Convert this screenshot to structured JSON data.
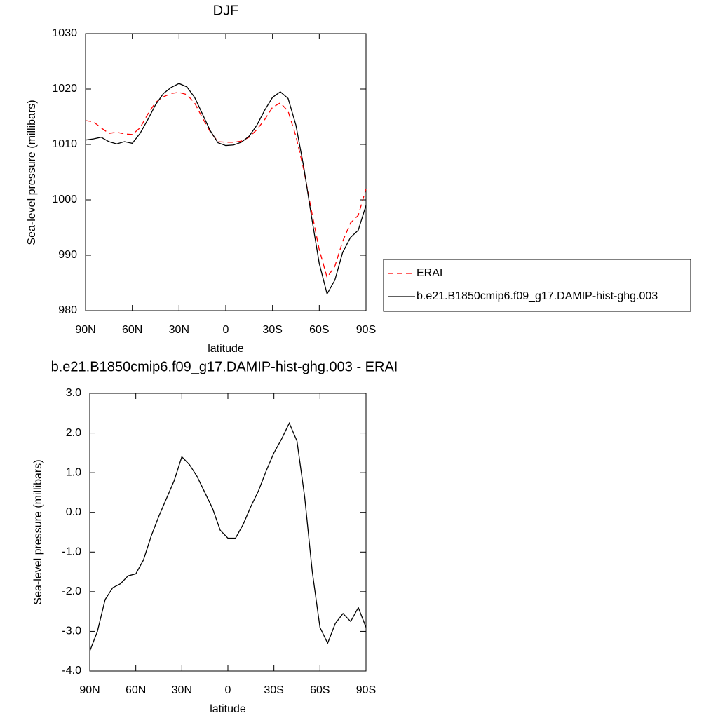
{
  "chart_data": [
    {
      "type": "line",
      "title": "DJF",
      "xlabel": "latitude",
      "ylabel": "Sea-level pressure (millibars)",
      "x": [
        90,
        85,
        80,
        75,
        70,
        65,
        60,
        55,
        50,
        45,
        40,
        35,
        30,
        25,
        20,
        15,
        10,
        5,
        0,
        -5,
        -10,
        -15,
        -20,
        -25,
        -30,
        -35,
        -40,
        -45,
        -50,
        -55,
        -60,
        -65,
        -70,
        -75,
        -80,
        -85,
        -90
      ],
      "series": [
        {
          "name": "ERAI",
          "color": "#ff0000",
          "line_style": "dashed",
          "values": [
            1014.3,
            1014.1,
            1013.0,
            1012.0,
            1012.2,
            1011.9,
            1011.8,
            1013.0,
            1015.5,
            1017.6,
            1018.6,
            1019.2,
            1019.4,
            1019.0,
            1017.5,
            1014.8,
            1012.3,
            1010.5,
            1010.4,
            1010.4,
            1010.6,
            1011.3,
            1012.7,
            1014.5,
            1016.7,
            1017.5,
            1016.0,
            1011.5,
            1005.5,
            998.0,
            991.0,
            986.0,
            988.0,
            992.5,
            995.8,
            997.2,
            1002.0
          ]
        },
        {
          "name": "b.e21.B1850cmip6.f09_g17.DAMIP-hist-ghg.003",
          "color": "#000000",
          "line_style": "solid",
          "values": [
            1010.8,
            1011.0,
            1011.3,
            1010.5,
            1010.1,
            1010.5,
            1010.2,
            1012.0,
            1014.5,
            1017.2,
            1019.2,
            1020.3,
            1021.0,
            1020.4,
            1018.5,
            1015.5,
            1012.5,
            1010.3,
            1009.8,
            1009.9,
            1010.4,
            1011.5,
            1013.5,
            1016.2,
            1018.5,
            1019.5,
            1018.3,
            1013.5,
            1006.0,
            997.0,
            988.5,
            983.0,
            985.5,
            990.5,
            993.2,
            994.5,
            999.0
          ]
        }
      ],
      "xlim": [
        90,
        -90
      ],
      "xticks": [
        {
          "value": 90,
          "label": "90N"
        },
        {
          "value": 60,
          "label": "60N"
        },
        {
          "value": 30,
          "label": "30N"
        },
        0,
        {
          "value": -30,
          "label": "30S"
        },
        {
          "value": -60,
          "label": "60S"
        },
        {
          "value": -90,
          "label": "90S"
        }
      ],
      "ylim": [
        980,
        1030
      ],
      "yticks": [
        980,
        990,
        1000,
        1010,
        1020,
        1030
      ],
      "legend": "right"
    },
    {
      "type": "line",
      "title": "b.e21.B1850cmip6.f09_g17.DAMIP-hist-ghg.003 - ERAI",
      "xlabel": "latitude",
      "ylabel": "Sea-level pressure (millibars)",
      "x": [
        90,
        85,
        80,
        75,
        70,
        65,
        60,
        55,
        50,
        45,
        40,
        35,
        30,
        25,
        20,
        15,
        10,
        5,
        0,
        -5,
        -10,
        -15,
        -20,
        -25,
        -30,
        -35,
        -40,
        -45,
        -50,
        -55,
        -60,
        -65,
        -70,
        -75,
        -80,
        -85,
        -90
      ],
      "series": [
        {
          "color": "#000000",
          "line_style": "solid",
          "values": [
            -3.5,
            -3.0,
            -2.2,
            -1.9,
            -1.8,
            -1.6,
            -1.55,
            -1.2,
            -0.6,
            -0.1,
            0.35,
            0.8,
            1.4,
            1.2,
            0.9,
            0.5,
            0.1,
            -0.45,
            -0.65,
            -0.65,
            -0.3,
            0.15,
            0.55,
            1.05,
            1.5,
            1.85,
            2.25,
            1.8,
            0.4,
            -1.5,
            -2.9,
            -3.3,
            -2.8,
            -2.55,
            -2.75,
            -2.4,
            -2.9
          ]
        }
      ],
      "xlim": [
        90,
        -90
      ],
      "xticks": [
        {
          "value": 90,
          "label": "90N"
        },
        {
          "value": 60,
          "label": "60N"
        },
        {
          "value": 30,
          "label": "30N"
        },
        0,
        {
          "value": -30,
          "label": "30S"
        },
        {
          "value": -60,
          "label": "60S"
        },
        {
          "value": -90,
          "label": "90S"
        }
      ],
      "ylim": [
        -4,
        3
      ],
      "yticks": [
        {
          "value": -4,
          "label": "-4.0"
        },
        {
          "value": -3,
          "label": "-3.0"
        },
        {
          "value": -2,
          "label": "-2.0"
        },
        {
          "value": -1,
          "label": "-1.0"
        },
        {
          "value": 0,
          "label": "0.0"
        },
        {
          "value": 1,
          "label": "1.0"
        },
        {
          "value": 2,
          "label": "2.0"
        },
        {
          "value": 3,
          "label": "3.0"
        }
      ]
    }
  ]
}
